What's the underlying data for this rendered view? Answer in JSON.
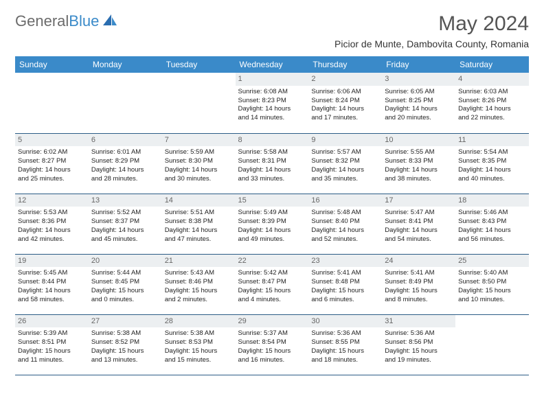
{
  "logo": {
    "general": "General",
    "blue": "Blue"
  },
  "title": "May 2024",
  "location": "Picior de Munte, Dambovita County, Romania",
  "colors": {
    "header_bg": "#3a8ac9",
    "header_text": "#ffffff",
    "daynum_bg": "#eceff1",
    "daynum_text": "#666666",
    "border": "#2a5b85",
    "title_color": "#555555",
    "logo_gray": "#6b6b6b",
    "logo_blue": "#3a8ac9"
  },
  "weekdays": [
    "Sunday",
    "Monday",
    "Tuesday",
    "Wednesday",
    "Thursday",
    "Friday",
    "Saturday"
  ],
  "weeks": [
    [
      {
        "day": "",
        "lines": [
          "",
          "",
          "",
          ""
        ]
      },
      {
        "day": "",
        "lines": [
          "",
          "",
          "",
          ""
        ]
      },
      {
        "day": "",
        "lines": [
          "",
          "",
          "",
          ""
        ]
      },
      {
        "day": "1",
        "lines": [
          "Sunrise: 6:08 AM",
          "Sunset: 8:23 PM",
          "Daylight: 14 hours",
          "and 14 minutes."
        ]
      },
      {
        "day": "2",
        "lines": [
          "Sunrise: 6:06 AM",
          "Sunset: 8:24 PM",
          "Daylight: 14 hours",
          "and 17 minutes."
        ]
      },
      {
        "day": "3",
        "lines": [
          "Sunrise: 6:05 AM",
          "Sunset: 8:25 PM",
          "Daylight: 14 hours",
          "and 20 minutes."
        ]
      },
      {
        "day": "4",
        "lines": [
          "Sunrise: 6:03 AM",
          "Sunset: 8:26 PM",
          "Daylight: 14 hours",
          "and 22 minutes."
        ]
      }
    ],
    [
      {
        "day": "5",
        "lines": [
          "Sunrise: 6:02 AM",
          "Sunset: 8:27 PM",
          "Daylight: 14 hours",
          "and 25 minutes."
        ]
      },
      {
        "day": "6",
        "lines": [
          "Sunrise: 6:01 AM",
          "Sunset: 8:29 PM",
          "Daylight: 14 hours",
          "and 28 minutes."
        ]
      },
      {
        "day": "7",
        "lines": [
          "Sunrise: 5:59 AM",
          "Sunset: 8:30 PM",
          "Daylight: 14 hours",
          "and 30 minutes."
        ]
      },
      {
        "day": "8",
        "lines": [
          "Sunrise: 5:58 AM",
          "Sunset: 8:31 PM",
          "Daylight: 14 hours",
          "and 33 minutes."
        ]
      },
      {
        "day": "9",
        "lines": [
          "Sunrise: 5:57 AM",
          "Sunset: 8:32 PM",
          "Daylight: 14 hours",
          "and 35 minutes."
        ]
      },
      {
        "day": "10",
        "lines": [
          "Sunrise: 5:55 AM",
          "Sunset: 8:33 PM",
          "Daylight: 14 hours",
          "and 38 minutes."
        ]
      },
      {
        "day": "11",
        "lines": [
          "Sunrise: 5:54 AM",
          "Sunset: 8:35 PM",
          "Daylight: 14 hours",
          "and 40 minutes."
        ]
      }
    ],
    [
      {
        "day": "12",
        "lines": [
          "Sunrise: 5:53 AM",
          "Sunset: 8:36 PM",
          "Daylight: 14 hours",
          "and 42 minutes."
        ]
      },
      {
        "day": "13",
        "lines": [
          "Sunrise: 5:52 AM",
          "Sunset: 8:37 PM",
          "Daylight: 14 hours",
          "and 45 minutes."
        ]
      },
      {
        "day": "14",
        "lines": [
          "Sunrise: 5:51 AM",
          "Sunset: 8:38 PM",
          "Daylight: 14 hours",
          "and 47 minutes."
        ]
      },
      {
        "day": "15",
        "lines": [
          "Sunrise: 5:49 AM",
          "Sunset: 8:39 PM",
          "Daylight: 14 hours",
          "and 49 minutes."
        ]
      },
      {
        "day": "16",
        "lines": [
          "Sunrise: 5:48 AM",
          "Sunset: 8:40 PM",
          "Daylight: 14 hours",
          "and 52 minutes."
        ]
      },
      {
        "day": "17",
        "lines": [
          "Sunrise: 5:47 AM",
          "Sunset: 8:41 PM",
          "Daylight: 14 hours",
          "and 54 minutes."
        ]
      },
      {
        "day": "18",
        "lines": [
          "Sunrise: 5:46 AM",
          "Sunset: 8:43 PM",
          "Daylight: 14 hours",
          "and 56 minutes."
        ]
      }
    ],
    [
      {
        "day": "19",
        "lines": [
          "Sunrise: 5:45 AM",
          "Sunset: 8:44 PM",
          "Daylight: 14 hours",
          "and 58 minutes."
        ]
      },
      {
        "day": "20",
        "lines": [
          "Sunrise: 5:44 AM",
          "Sunset: 8:45 PM",
          "Daylight: 15 hours",
          "and 0 minutes."
        ]
      },
      {
        "day": "21",
        "lines": [
          "Sunrise: 5:43 AM",
          "Sunset: 8:46 PM",
          "Daylight: 15 hours",
          "and 2 minutes."
        ]
      },
      {
        "day": "22",
        "lines": [
          "Sunrise: 5:42 AM",
          "Sunset: 8:47 PM",
          "Daylight: 15 hours",
          "and 4 minutes."
        ]
      },
      {
        "day": "23",
        "lines": [
          "Sunrise: 5:41 AM",
          "Sunset: 8:48 PM",
          "Daylight: 15 hours",
          "and 6 minutes."
        ]
      },
      {
        "day": "24",
        "lines": [
          "Sunrise: 5:41 AM",
          "Sunset: 8:49 PM",
          "Daylight: 15 hours",
          "and 8 minutes."
        ]
      },
      {
        "day": "25",
        "lines": [
          "Sunrise: 5:40 AM",
          "Sunset: 8:50 PM",
          "Daylight: 15 hours",
          "and 10 minutes."
        ]
      }
    ],
    [
      {
        "day": "26",
        "lines": [
          "Sunrise: 5:39 AM",
          "Sunset: 8:51 PM",
          "Daylight: 15 hours",
          "and 11 minutes."
        ]
      },
      {
        "day": "27",
        "lines": [
          "Sunrise: 5:38 AM",
          "Sunset: 8:52 PM",
          "Daylight: 15 hours",
          "and 13 minutes."
        ]
      },
      {
        "day": "28",
        "lines": [
          "Sunrise: 5:38 AM",
          "Sunset: 8:53 PM",
          "Daylight: 15 hours",
          "and 15 minutes."
        ]
      },
      {
        "day": "29",
        "lines": [
          "Sunrise: 5:37 AM",
          "Sunset: 8:54 PM",
          "Daylight: 15 hours",
          "and 16 minutes."
        ]
      },
      {
        "day": "30",
        "lines": [
          "Sunrise: 5:36 AM",
          "Sunset: 8:55 PM",
          "Daylight: 15 hours",
          "and 18 minutes."
        ]
      },
      {
        "day": "31",
        "lines": [
          "Sunrise: 5:36 AM",
          "Sunset: 8:56 PM",
          "Daylight: 15 hours",
          "and 19 minutes."
        ]
      },
      {
        "day": "",
        "lines": [
          "",
          "",
          "",
          ""
        ]
      }
    ]
  ]
}
